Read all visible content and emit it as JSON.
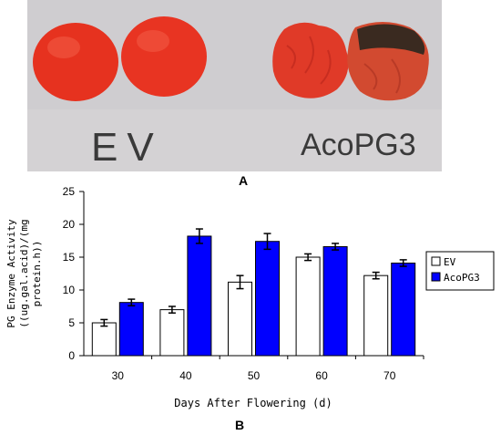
{
  "photo": {
    "labels": [
      "EV",
      "AcoPG3"
    ]
  },
  "panel_labels": {
    "a": "A",
    "b": "B"
  },
  "chart_data": {
    "type": "bar",
    "categories": [
      "30",
      "40",
      "50",
      "60",
      "70"
    ],
    "series": [
      {
        "name": "EV",
        "values": [
          5.0,
          7.0,
          11.2,
          15.0,
          12.2
        ],
        "errors": [
          0.5,
          0.5,
          1.0,
          0.5,
          0.5
        ],
        "color": "#ffffff"
      },
      {
        "name": "AcoPG3",
        "values": [
          8.1,
          18.2,
          17.4,
          16.6,
          14.1
        ],
        "errors": [
          0.5,
          1.1,
          1.2,
          0.5,
          0.5
        ],
        "color": "#0000ff"
      }
    ],
    "xlabel": "Days After Flowering (d)",
    "ylabel_lines": [
      "PG Enzyme Activity",
      "((ug.gal.acid)/(mg",
      "protein.h))"
    ],
    "ylim": [
      0,
      25
    ],
    "yticks": [
      0,
      5,
      10,
      15,
      20,
      25
    ],
    "legend_position": "right"
  }
}
